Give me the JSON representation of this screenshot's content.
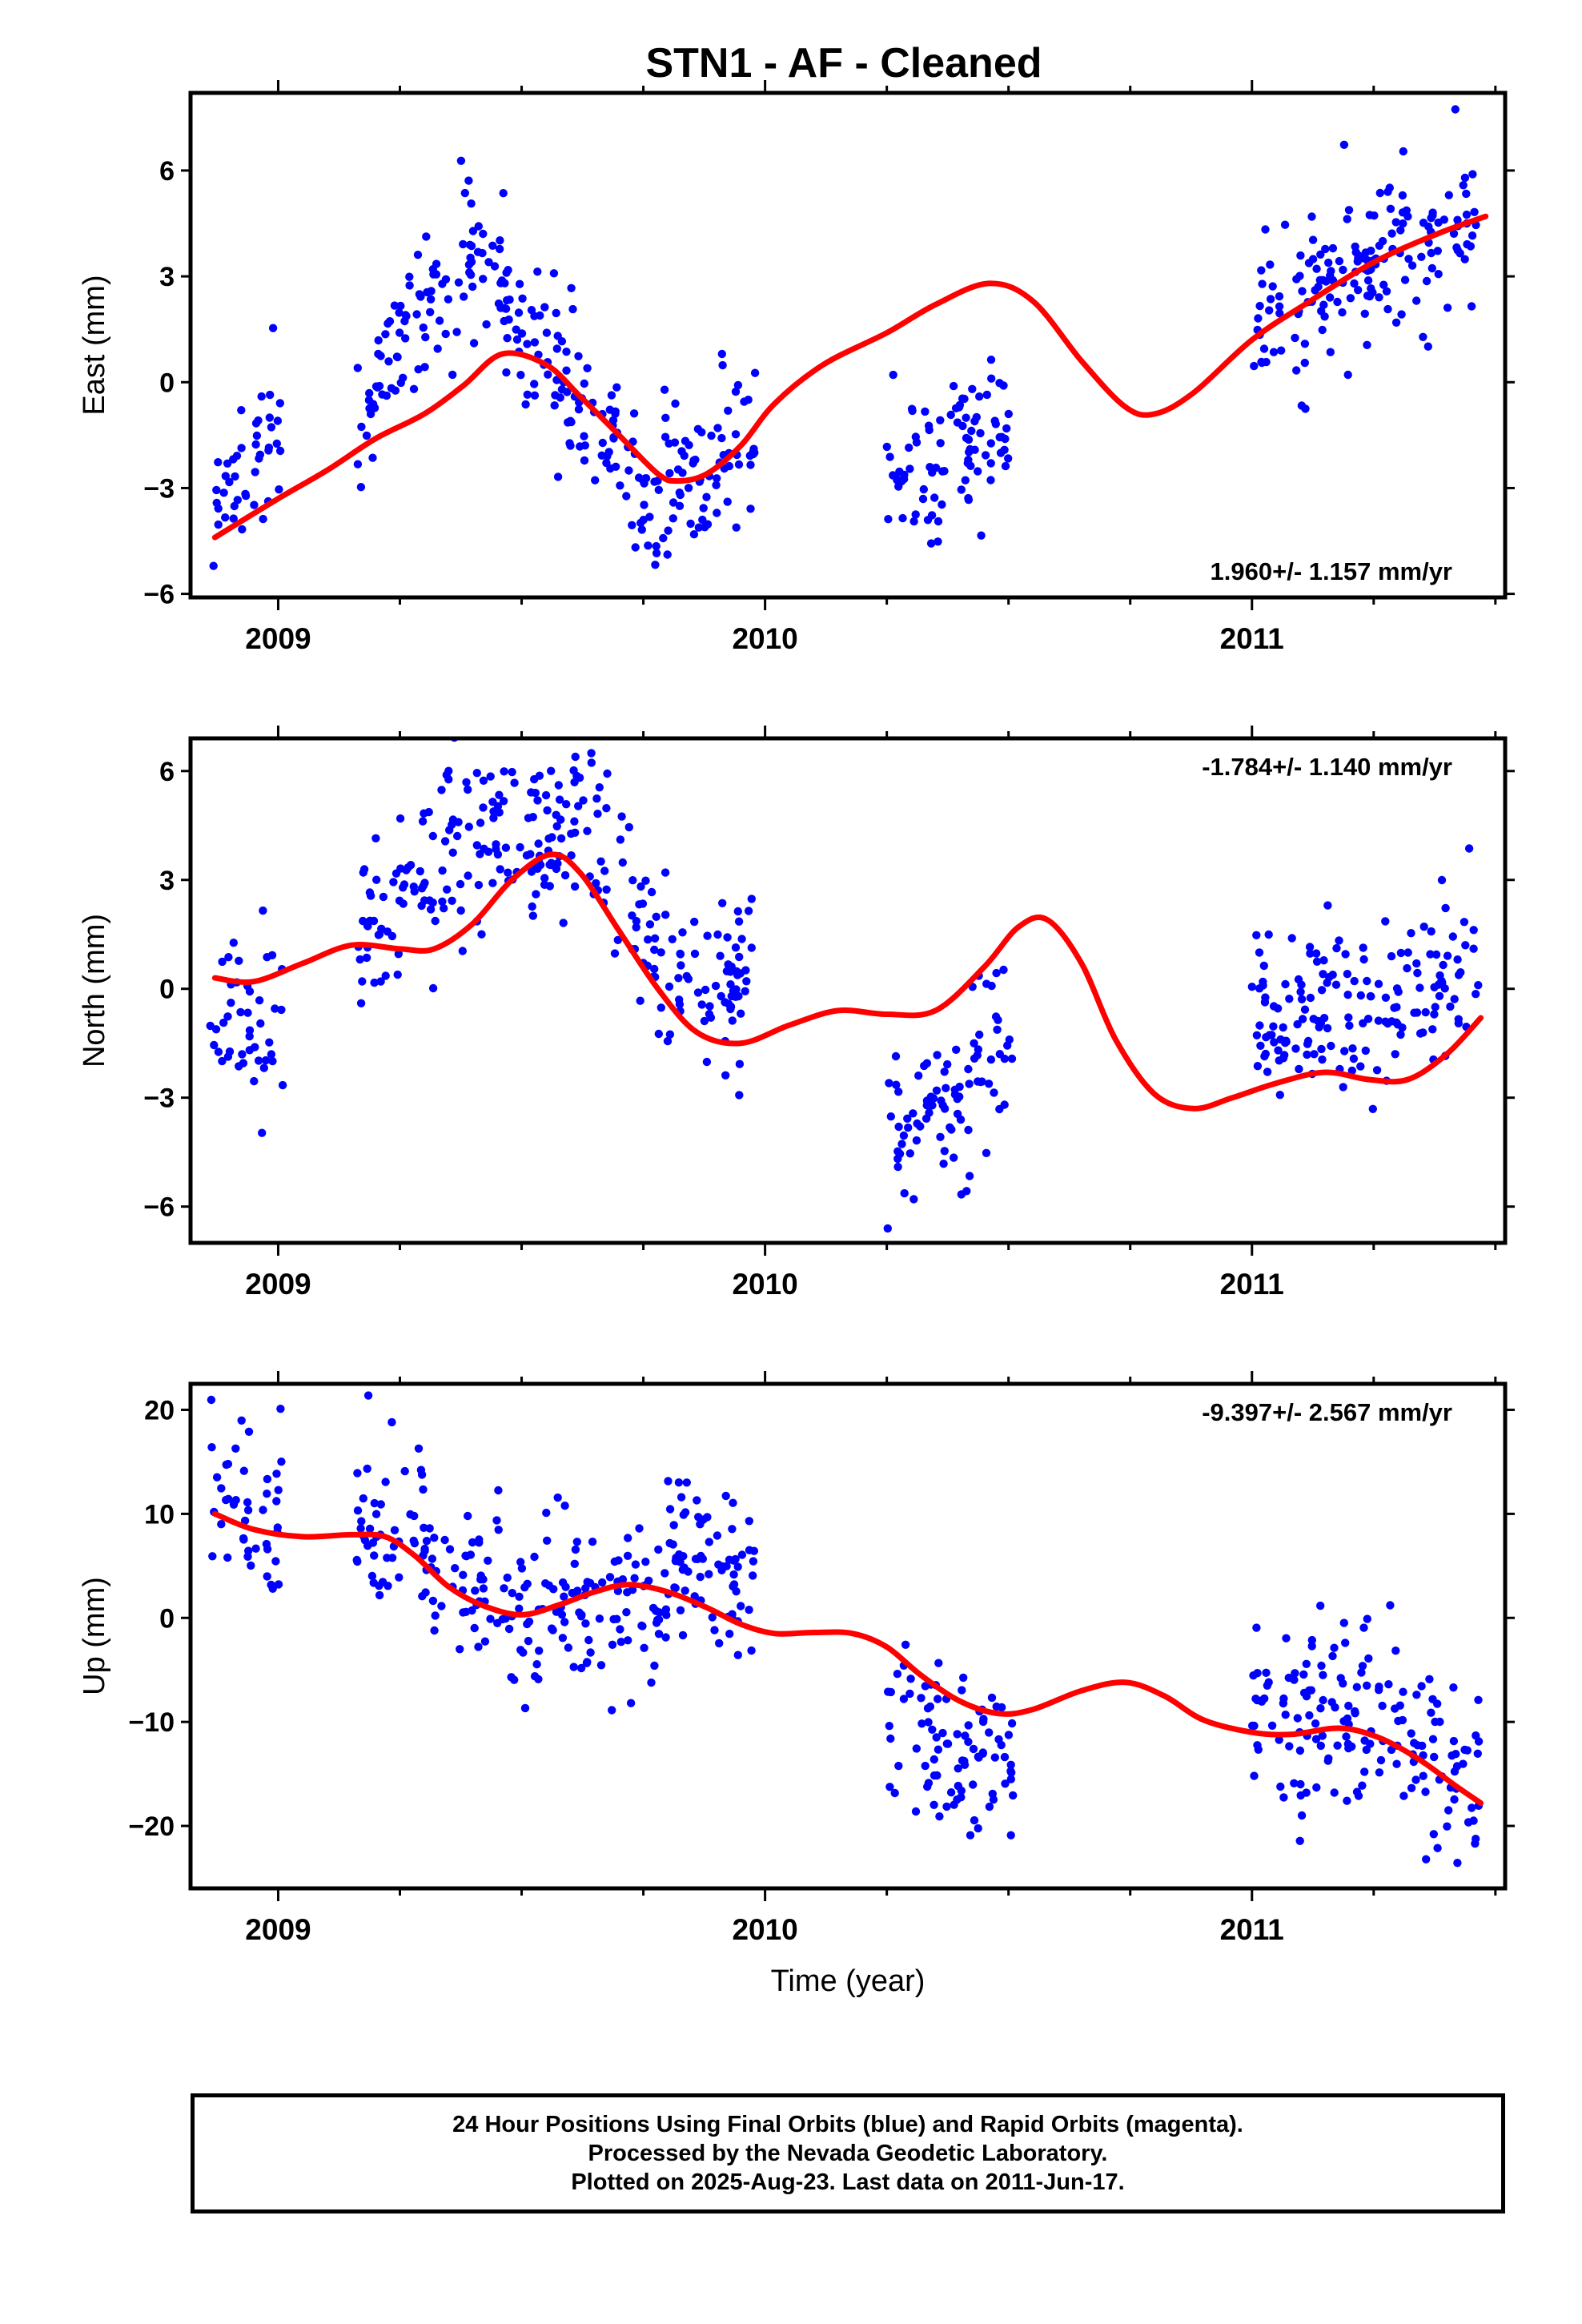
{
  "title": "STN1  - AF - Cleaned",
  "colors": {
    "final_orbits": "#0000ff",
    "rapid_orbits": "#ff00ff",
    "fit": "#ff0000",
    "frame": "#000000"
  },
  "footer": {
    "line1": "24 Hour Positions Using Final Orbits (blue) and Rapid Orbits (magenta).",
    "line2": "Processed by the Nevada Geodetic Laboratory.",
    "line3": "Plotted on 2025-Aug-23. Last data on 2011-Jun-17."
  },
  "chart_data": [
    {
      "type": "scatter",
      "name": "east",
      "title": "STN1  - AF - Cleaned",
      "ylabel": "East (mm)",
      "xlabel": "",
      "xlim": [
        2008.82,
        2011.52
      ],
      "ylim": [
        -6.1,
        8.2
      ],
      "x_ticks": [
        2009,
        2010,
        2011
      ],
      "y_ticks": [
        -6,
        -3,
        0,
        3,
        6
      ],
      "y_tick_labels": [
        "−6",
        "−3",
        "0",
        "3",
        "6"
      ],
      "rate_label": "1.960+/- 1.157 mm/yr",
      "rate_position": "bottom-right",
      "gaps": [
        [
          2009.01,
          2009.16
        ],
        [
          2009.99,
          2010.25
        ],
        [
          2010.51,
          2011.0
        ]
      ],
      "fit_curve": [
        [
          2008.87,
          -4.4
        ],
        [
          2009.0,
          -3.3
        ],
        [
          2009.1,
          -2.5
        ],
        [
          2009.2,
          -1.6
        ],
        [
          2009.3,
          -0.9
        ],
        [
          2009.38,
          -0.1
        ],
        [
          2009.46,
          0.8
        ],
        [
          2009.55,
          0.5
        ],
        [
          2009.62,
          -0.4
        ],
        [
          2009.7,
          -1.5
        ],
        [
          2009.78,
          -2.6
        ],
        [
          2009.82,
          -2.8
        ],
        [
          2009.88,
          -2.6
        ],
        [
          2009.95,
          -1.8
        ],
        [
          2010.02,
          -0.6
        ],
        [
          2010.12,
          0.5
        ],
        [
          2010.25,
          1.4
        ],
        [
          2010.35,
          2.2
        ],
        [
          2010.46,
          2.8
        ],
        [
          2010.55,
          2.3
        ],
        [
          2010.65,
          0.6
        ],
        [
          2010.74,
          -0.7
        ],
        [
          2010.8,
          -0.9
        ],
        [
          2010.88,
          -0.3
        ],
        [
          2011.0,
          1.2
        ],
        [
          2011.12,
          2.3
        ],
        [
          2011.25,
          3.4
        ],
        [
          2011.38,
          4.2
        ],
        [
          2011.48,
          4.7
        ]
      ],
      "cloud_segments": [
        {
          "x_range": [
            2008.86,
            2009.01
          ],
          "points": 44
        },
        {
          "x_range": [
            2009.16,
            2009.98
          ],
          "points": 285
        },
        {
          "x_range": [
            2010.25,
            2010.51
          ],
          "points": 90
        },
        {
          "x_range": [
            2011.0,
            2011.47
          ],
          "points": 165
        }
      ]
    },
    {
      "type": "scatter",
      "name": "north",
      "ylabel": "North (mm)",
      "xlabel": "",
      "xlim": [
        2008.82,
        2011.52
      ],
      "ylim": [
        -7.0,
        6.9
      ],
      "x_ticks": [
        2009,
        2010,
        2011
      ],
      "y_ticks": [
        -6,
        -3,
        0,
        3,
        6
      ],
      "y_tick_labels": [
        "−6",
        "−3",
        "0",
        "3",
        "6"
      ],
      "rate_label": "-1.784+/- 1.140 mm/yr",
      "rate_position": "top-right",
      "gaps": [
        [
          2009.01,
          2009.16
        ],
        [
          2009.99,
          2010.25
        ],
        [
          2010.51,
          2011.0
        ]
      ],
      "fit_curve": [
        [
          2008.87,
          0.3
        ],
        [
          2008.95,
          0.2
        ],
        [
          2009.05,
          0.7
        ],
        [
          2009.15,
          1.2
        ],
        [
          2009.25,
          1.1
        ],
        [
          2009.32,
          1.1
        ],
        [
          2009.4,
          1.8
        ],
        [
          2009.48,
          3.0
        ],
        [
          2009.56,
          3.7
        ],
        [
          2009.62,
          3.2
        ],
        [
          2009.7,
          1.6
        ],
        [
          2009.78,
          0.0
        ],
        [
          2009.86,
          -1.2
        ],
        [
          2009.95,
          -1.5
        ],
        [
          2010.05,
          -1.0
        ],
        [
          2010.15,
          -0.6
        ],
        [
          2010.25,
          -0.7
        ],
        [
          2010.35,
          -0.6
        ],
        [
          2010.45,
          0.6
        ],
        [
          2010.52,
          1.7
        ],
        [
          2010.58,
          1.9
        ],
        [
          2010.65,
          0.7
        ],
        [
          2010.72,
          -1.4
        ],
        [
          2010.8,
          -2.9
        ],
        [
          2010.88,
          -3.3
        ],
        [
          2010.96,
          -3.0
        ],
        [
          2011.05,
          -2.6
        ],
        [
          2011.15,
          -2.3
        ],
        [
          2011.24,
          -2.5
        ],
        [
          2011.32,
          -2.5
        ],
        [
          2011.4,
          -1.8
        ],
        [
          2011.47,
          -0.8
        ]
      ],
      "cloud_segments": [
        {
          "x_range": [
            2008.86,
            2009.01
          ],
          "points": 44
        },
        {
          "x_range": [
            2009.16,
            2009.98
          ],
          "points": 285
        },
        {
          "x_range": [
            2010.25,
            2010.51
          ],
          "points": 90
        },
        {
          "x_range": [
            2011.0,
            2011.47
          ],
          "points": 165
        }
      ]
    },
    {
      "type": "scatter",
      "name": "up",
      "ylabel": "Up (mm)",
      "xlabel": "Time (year)",
      "xlim": [
        2008.82,
        2011.52
      ],
      "ylim": [
        -26.0,
        22.5
      ],
      "x_ticks": [
        2009,
        2010,
        2011
      ],
      "y_ticks": [
        -20,
        -10,
        0,
        10,
        20
      ],
      "y_tick_labels": [
        "−20",
        "−10",
        "0",
        "10",
        "20"
      ],
      "rate_label": "-9.397+/- 2.567 mm/yr",
      "rate_position": "top-right",
      "gaps": [
        [
          2009.01,
          2009.16
        ],
        [
          2009.99,
          2010.25
        ],
        [
          2010.51,
          2011.0
        ]
      ],
      "fit_curve": [
        [
          2008.87,
          10.0
        ],
        [
          2008.95,
          8.5
        ],
        [
          2009.05,
          7.8
        ],
        [
          2009.15,
          8.0
        ],
        [
          2009.22,
          7.8
        ],
        [
          2009.28,
          6.0
        ],
        [
          2009.35,
          3.0
        ],
        [
          2009.42,
          1.2
        ],
        [
          2009.5,
          0.3
        ],
        [
          2009.58,
          1.3
        ],
        [
          2009.65,
          2.5
        ],
        [
          2009.72,
          3.2
        ],
        [
          2009.8,
          2.5
        ],
        [
          2009.88,
          1.0
        ],
        [
          2009.95,
          -0.6
        ],
        [
          2010.02,
          -1.5
        ],
        [
          2010.1,
          -1.4
        ],
        [
          2010.18,
          -1.5
        ],
        [
          2010.25,
          -2.8
        ],
        [
          2010.32,
          -5.5
        ],
        [
          2010.4,
          -8.0
        ],
        [
          2010.48,
          -9.2
        ],
        [
          2010.55,
          -8.8
        ],
        [
          2010.65,
          -7.0
        ],
        [
          2010.74,
          -6.2
        ],
        [
          2010.82,
          -7.5
        ],
        [
          2010.9,
          -9.8
        ],
        [
          2011.0,
          -11.0
        ],
        [
          2011.08,
          -11.2
        ],
        [
          2011.18,
          -10.6
        ],
        [
          2011.26,
          -11.5
        ],
        [
          2011.34,
          -13.5
        ],
        [
          2011.42,
          -16.2
        ],
        [
          2011.47,
          -17.8
        ]
      ],
      "cloud_segments": [
        {
          "x_range": [
            2008.86,
            2009.01
          ],
          "points": 44
        },
        {
          "x_range": [
            2009.16,
            2009.98
          ],
          "points": 285
        },
        {
          "x_range": [
            2010.25,
            2010.51
          ],
          "points": 90
        },
        {
          "x_range": [
            2011.0,
            2011.47
          ],
          "points": 165
        }
      ]
    }
  ]
}
